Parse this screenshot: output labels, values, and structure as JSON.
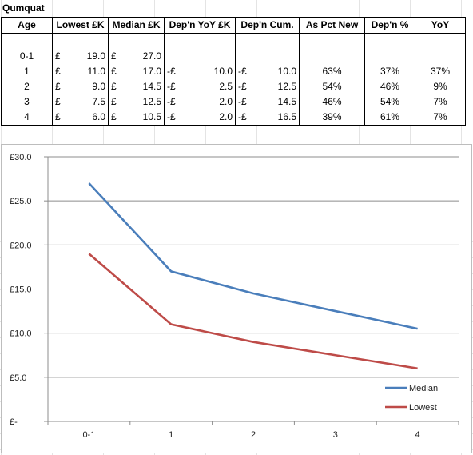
{
  "sheet": {
    "title": "Qumquat"
  },
  "table": {
    "headers": [
      "Age",
      "Lowest £K",
      "Median £K",
      "Dep'n YoY £K",
      "Dep'n Cum.",
      "As Pct New",
      "Dep'n %",
      "YoY"
    ],
    "currency_symbol": "£",
    "dep_prefix": "-£",
    "rows": [
      {
        "age": "0-1",
        "lowest": "19.0",
        "median": "27.0",
        "dep_yoy": "",
        "dep_cum": "",
        "pct_new": "",
        "dep_pct": "",
        "yoy": ""
      },
      {
        "age": "1",
        "lowest": "11.0",
        "median": "17.0",
        "dep_yoy": "10.0",
        "dep_cum": "10.0",
        "pct_new": "63%",
        "dep_pct": "37%",
        "yoy": "37%"
      },
      {
        "age": "2",
        "lowest": "9.0",
        "median": "14.5",
        "dep_yoy": "2.5",
        "dep_cum": "12.5",
        "pct_new": "54%",
        "dep_pct": "46%",
        "yoy": "9%"
      },
      {
        "age": "3",
        "lowest": "7.5",
        "median": "12.5",
        "dep_yoy": "2.0",
        "dep_cum": "14.5",
        "pct_new": "46%",
        "dep_pct": "54%",
        "yoy": "7%"
      },
      {
        "age": "4",
        "lowest": "6.0",
        "median": "10.5",
        "dep_yoy": "2.0",
        "dep_cum": "16.5",
        "pct_new": "39%",
        "dep_pct": "61%",
        "yoy": "7%"
      }
    ]
  },
  "chart_data": {
    "type": "line",
    "categories": [
      "0-1",
      "1",
      "2",
      "3",
      "4"
    ],
    "series": [
      {
        "name": "Median",
        "values": [
          27.0,
          17.0,
          14.5,
          12.5,
          10.5
        ],
        "color": "#4a7ebb"
      },
      {
        "name": "Lowest",
        "values": [
          19.0,
          11.0,
          9.0,
          7.5,
          6.0
        ],
        "color": "#be4b48"
      }
    ],
    "ylim": [
      0,
      30
    ],
    "yticks": [
      0,
      5,
      10,
      15,
      20,
      25,
      30
    ],
    "ytick_labels": [
      "£-",
      "£5.0",
      "£10.0",
      "£15.0",
      "£20.0",
      "£25.0",
      "£30.0"
    ],
    "title": "",
    "xlabel": "",
    "ylabel": "",
    "grid": true,
    "legend": "bottom-right"
  }
}
